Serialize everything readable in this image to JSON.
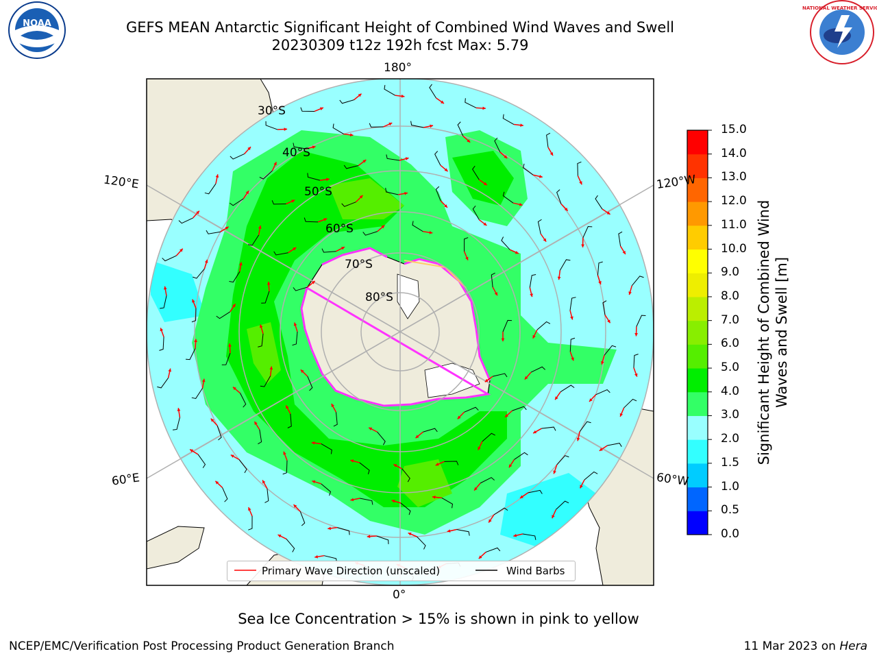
{
  "title_line1": "GEFS MEAN Antarctic Significant Height of Combined Wind Waves and Swell",
  "title_line2": "20230309 t12z 192h fcst   Max: 5.79",
  "lon_labels": {
    "top": "180°",
    "bottom": "0°",
    "left_upper": "120°E",
    "left_lower": "60°E",
    "right_upper": "120°W",
    "right_lower": "60°W"
  },
  "lat_labels": [
    "30°S",
    "40°S",
    "50°S",
    "60°S",
    "70°S",
    "80°S"
  ],
  "colorbar": {
    "label": "Significant Height of Combined Wind Waves and Swell [m]",
    "ticks": [
      "0.0",
      "0.5",
      "1.0",
      "1.5",
      "2.0",
      "3.0",
      "4.0",
      "5.0",
      "6.0",
      "7.0",
      "8.0",
      "9.0",
      "10.0",
      "11.0",
      "12.0",
      "13.0",
      "14.0",
      "15.0"
    ],
    "colors": [
      "#0000ff",
      "#0066ff",
      "#00ccff",
      "#33ffff",
      "#99ffff",
      "#33ff66",
      "#00ee00",
      "#55ee00",
      "#88ee00",
      "#bbee00",
      "#eeee00",
      "#ffff00",
      "#ffcc00",
      "#ff9900",
      "#ff6600",
      "#ff3300",
      "#ff0000"
    ]
  },
  "legend": {
    "wave_direction": "Primary Wave Direction (unscaled)",
    "wind_barbs": "Wind Barbs"
  },
  "note": "Sea Ice Concentration > 15% is shown in pink to yellow",
  "footer": {
    "left": "NCEP/EMC/Verification Post Processing Product Generation Branch",
    "date": "11 Mar 2023 on ",
    "host": "Hera"
  },
  "logos": {
    "noaa": "NOAA",
    "nws": "NATIONAL WEATHER SERVICE"
  },
  "colors": {
    "land": "#efecdc",
    "ocean_low": "#99ffff",
    "ocean_mid": "#33ff66",
    "ocean_high": "#00ee00",
    "ice": "#ff33ff",
    "arrow": "#ff0000",
    "grid": "#b0b0b0"
  }
}
